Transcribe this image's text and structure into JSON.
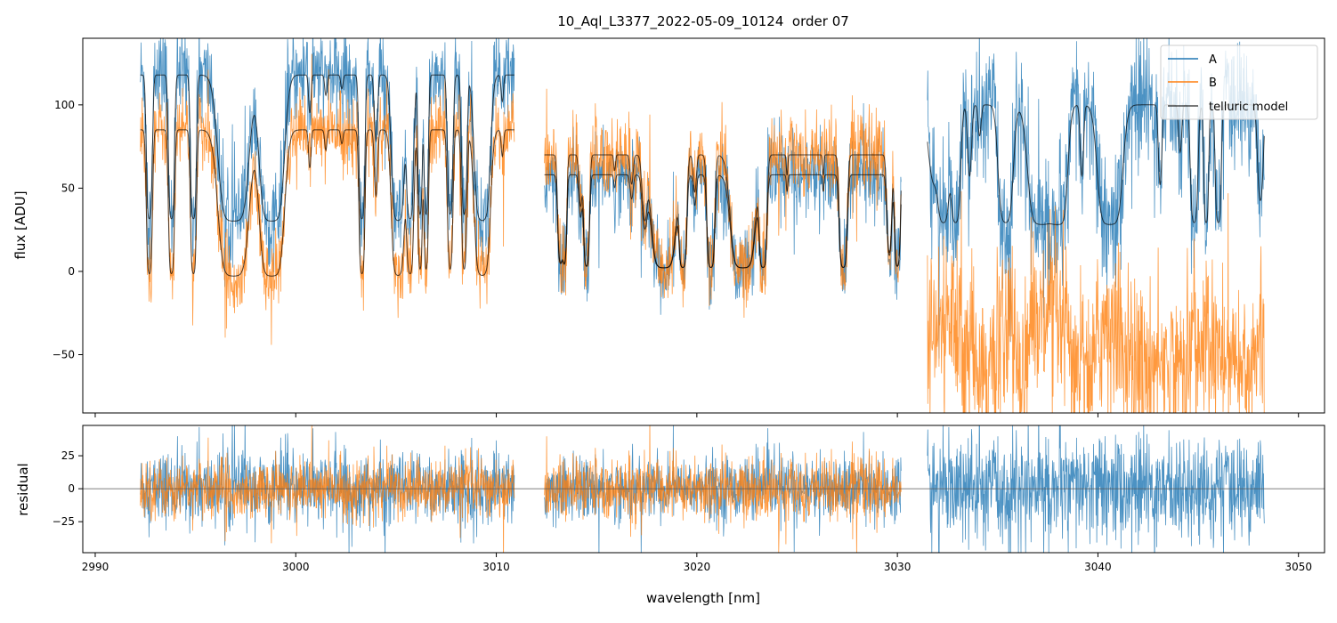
{
  "chart_data": [
    {
      "type": "line",
      "panel": "flux",
      "title": "10_Aql_L3377_2022-05-09_10124  order 07",
      "xlabel": "",
      "ylabel": "flux [ADU]",
      "xlim": [
        2989.38,
        3051.3
      ],
      "ylim": [
        -85,
        140
      ],
      "yticks": [
        100,
        50,
        0,
        -50
      ],
      "ytick_labels": [
        "100",
        "50",
        "0",
        "−50"
      ],
      "legend": {
        "placement": "top-right",
        "entries": [
          "A",
          "B",
          "telluric model"
        ]
      },
      "colors": {
        "A": "#1f77b4",
        "B": "#ff7f0e",
        "model": "#000000"
      },
      "segments": [
        {
          "range": [
            2992.25,
            3010.9
          ],
          "A": {
            "offset": 30,
            "scale": 88,
            "noise": 14
          },
          "B": {
            "offset": -3,
            "scale": 88,
            "noise": 11
          },
          "lines": [
            [
              2992.7,
              4,
              0.12
            ],
            [
              2993.8,
              4,
              0.12
            ],
            [
              2994.9,
              4,
              0.12
            ],
            [
              2996.9,
              6,
              0.55
            ],
            [
              2998.8,
              6,
              0.45
            ],
            [
              3000.7,
              0.3,
              0.08
            ],
            [
              3001.5,
              0.15,
              0.08
            ],
            [
              3002.3,
              0.1,
              0.08
            ],
            [
              3003.3,
              4,
              0.12
            ],
            [
              3004.0,
              0.6,
              0.1
            ],
            [
              3005.1,
              5,
              0.25
            ],
            [
              3005.7,
              4,
              0.15
            ],
            [
              3006.2,
              3,
              0.1
            ],
            [
              3006.5,
              3,
              0.1
            ],
            [
              3007.7,
              3,
              0.12
            ],
            [
              3008.4,
              3,
              0.12
            ],
            [
              3009.3,
              5,
              0.3
            ],
            [
              3010.3,
              0.2,
              0.08
            ]
          ]
        },
        {
          "range": [
            3012.4,
            3030.2
          ],
          "A": {
            "offset": 2,
            "scale": 56,
            "noise": 12
          },
          "B": {
            "offset": 2,
            "scale": 68,
            "noise": 12
          },
          "lines": [
            [
              3013.2,
              3,
              0.12
            ],
            [
              3013.4,
              3,
              0.1
            ],
            [
              3014.2,
              0.6,
              0.1
            ],
            [
              3014.5,
              4,
              0.12
            ],
            [
              3015.9,
              0.15,
              0.06
            ],
            [
              3016.75,
              0.3,
              0.1
            ],
            [
              3017.4,
              0.8,
              0.15
            ],
            [
              3018.35,
              6,
              0.45
            ],
            [
              3019.3,
              5,
              0.15
            ],
            [
              3019.9,
              0.4,
              0.1
            ],
            [
              3020.7,
              5,
              0.15
            ],
            [
              3022.3,
              6,
              0.45
            ],
            [
              3023.3,
              5,
              0.15
            ],
            [
              3024.5,
              0.2,
              0.05
            ],
            [
              3026.3,
              0.2,
              0.05
            ],
            [
              3027.3,
              5,
              0.15
            ],
            [
              3029.6,
              2,
              0.12
            ],
            [
              3030.0,
              4,
              0.12
            ]
          ]
        },
        {
          "range": [
            3031.5,
            3048.3
          ],
          "A": {
            "offset": 28,
            "scale": 72,
            "noise": 20
          },
          "B": {
            "mean": -45,
            "noise": 25
          },
          "lines": [
            [
              3031.8,
              1,
              0.3
            ],
            [
              3032.3,
              4,
              0.25
            ],
            [
              3032.9,
              4,
              0.2
            ],
            [
              3033.6,
              0.9,
              0.12
            ],
            [
              3034.1,
              0.3,
              0.1
            ],
            [
              3035.4,
              4,
              0.3
            ],
            [
              3037.2,
              6,
              0.5
            ],
            [
              3038.0,
              6,
              0.35
            ],
            [
              3039.2,
              0.9,
              0.1
            ],
            [
              3040.6,
              6,
              0.45
            ],
            [
              3043.1,
              1.1,
              0.1
            ],
            [
              3044.1,
              0.5,
              0.1
            ],
            [
              3044.8,
              4,
              0.15
            ],
            [
              3045.4,
              4,
              0.1
            ],
            [
              3046.0,
              4,
              0.12
            ],
            [
              3048.1,
              1.6,
              0.15
            ]
          ]
        }
      ]
    },
    {
      "type": "line",
      "panel": "residual",
      "xlabel": "wavelength [nm]",
      "ylabel": "residual",
      "xlim": [
        2989.38,
        3051.3
      ],
      "ylim": [
        -48.5,
        48
      ],
      "yticks": [
        25,
        0,
        -25
      ],
      "ytick_labels": [
        "25",
        "0",
        "−25"
      ],
      "xticks": [
        2990,
        3000,
        3010,
        3020,
        3030,
        3040,
        3050
      ],
      "xtick_labels": [
        "2990",
        "3000",
        "3010",
        "3020",
        "3030",
        "3040",
        "3050"
      ]
    }
  ]
}
